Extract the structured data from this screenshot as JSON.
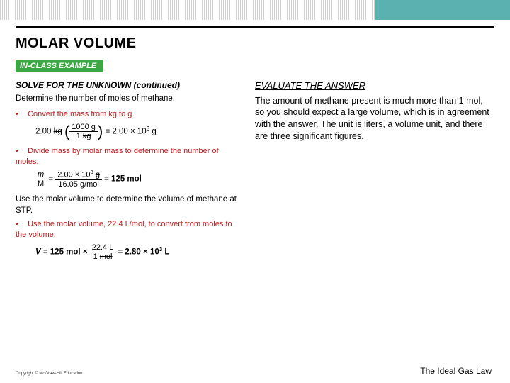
{
  "colors": {
    "teal": "#5bb0b0",
    "badge_green": "#3ba843",
    "step_red": "#c11a1a",
    "black": "#000000",
    "white": "#ffffff"
  },
  "title": "MOLAR VOLUME",
  "badge": "IN-CLASS EXAMPLE",
  "left": {
    "solve_head": "SOLVE FOR THE UNKNOWN (continued)",
    "determine": "Determine the number of moles of methane.",
    "step1": "Convert the mass from kg to g.",
    "f1_a": "2.00",
    "f1_kg": "kg",
    "f1_num": "1000 g",
    "f1_den_val": "1",
    "f1_den_unit": "kg",
    "f1_rhs": "= 2.00 × 10",
    "f1_exp": "3",
    "f1_unit": " g",
    "step2": "Divide mass by molar mass to determine the number of moles.",
    "f2_lhs_num_sym": "m",
    "f2_lhs_den_sym": "M",
    "f2_rhs_num_a": "2.00 × 10",
    "f2_rhs_num_exp": "3",
    "f2_rhs_num_unit": "g",
    "f2_rhs_den": "16.05",
    "f2_rhs_den_unit": "g",
    "f2_rhs_den_tail": "/mol",
    "f2_result": "= 125 mol",
    "use_text": "Use the molar volume to determine the volume of methane at STP.",
    "step3": "Use the molar volume, 22.4 L/mol, to convert from moles to the volume.",
    "f3_a": "V",
    "f3_b": " = 125 ",
    "f3_mol": "mol",
    "f3_times": " × ",
    "f3_num": "22.4 L",
    "f3_den_val": "1 ",
    "f3_den_unit": "mol",
    "f3_rhs": " = 2.80 × 10",
    "f3_exp": "3",
    "f3_unit": " L"
  },
  "right": {
    "head": "EVALUATE THE ANSWER",
    "body": "The amount of methane present is much more than 1 mol, so you should expect a large volume, which is in agreement with the answer. The unit is liters, a volume unit, and there are three significant figures."
  },
  "footer": {
    "left": "Copyright © McGraw-Hill Education",
    "right": "The Ideal Gas Law"
  }
}
